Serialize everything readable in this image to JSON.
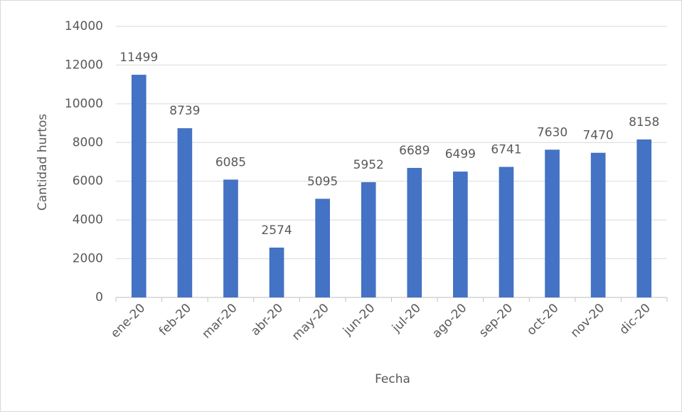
{
  "chart_data": {
    "type": "bar",
    "x_label": "Fecha",
    "y_label": "Cantidad hurtos",
    "categories": [
      "ene-20",
      "feb-20",
      "mar-20",
      "abr-20",
      "may-20",
      "jun-20",
      "jul-20",
      "ago-20",
      "sep-20",
      "oct-20",
      "nov-20",
      "dic-20"
    ],
    "values": [
      11499,
      8739,
      6085,
      2574,
      5095,
      5952,
      6689,
      6499,
      6741,
      7630,
      7470,
      8158
    ],
    "color": "#4472c4",
    "ylim": [
      0,
      14000
    ],
    "yticks": [
      0,
      2000,
      4000,
      6000,
      8000,
      10000,
      12000,
      14000
    ],
    "grid": true,
    "data_labels": true
  }
}
